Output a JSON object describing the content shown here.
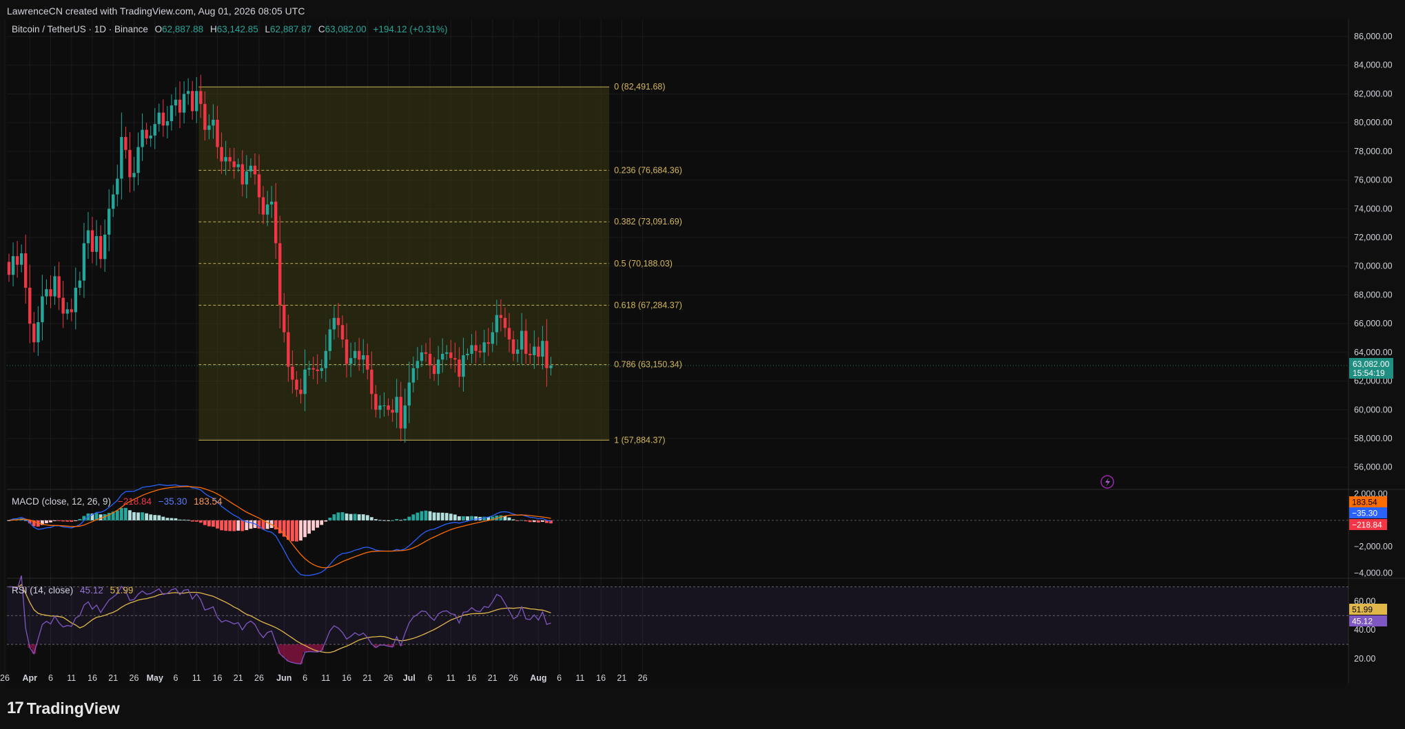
{
  "header": {
    "created_by": "LawrenceCN created with TradingView.com, Aug 01, 2026 08:05 UTC"
  },
  "symbol": {
    "name": "Bitcoin / TetherUS · 1D · Binance",
    "open_label": "O",
    "open": "62,887.88",
    "high_label": "H",
    "high": "63,142.85",
    "low_label": "L",
    "low": "62,887.87",
    "close_label": "C",
    "close": "63,082.00",
    "change": "+194.12 (+0.31%)"
  },
  "brand": {
    "name": "TradingView",
    "logo_text": "17"
  },
  "colors": {
    "up": "#26a69a",
    "down": "#f23645",
    "fib_zone": "#3b3b14",
    "fib_line": "#c9b458",
    "macd_line": "#2962ff",
    "signal_line": "#ff6d00",
    "rsi_line": "#7e57c2",
    "rsi_ma": "#e0b84a"
  },
  "chart_data": [
    {
      "type": "candlestick",
      "name": "Bitcoin / TetherUS · 1D · Binance",
      "y_axis_ticks": [
        56000,
        58000,
        60000,
        62000,
        64000,
        66000,
        68000,
        70000,
        72000,
        74000,
        76000,
        78000,
        80000,
        82000,
        84000,
        86000
      ],
      "y_tick_labels": [
        "56,000.00",
        "58,000.00",
        "60,000.00",
        "62,000.00",
        "64,000.00",
        "66,000.00",
        "68,000.00",
        "70,000.00",
        "72,000.00",
        "74,000.00",
        "76,000.00",
        "78,000.00",
        "80,000.00",
        "82,000.00",
        "84,000.00",
        "86,000.00"
      ],
      "ylim": [
        54500,
        87200
      ],
      "x_tick_labels": [
        {
          "day": -1,
          "label": "26"
        },
        {
          "day": 5,
          "label": "Apr"
        },
        {
          "day": 10,
          "label": "6"
        },
        {
          "day": 15,
          "label": "11"
        },
        {
          "day": 20,
          "label": "16"
        },
        {
          "day": 25,
          "label": "21"
        },
        {
          "day": 30,
          "label": "26"
        },
        {
          "day": 35,
          "label": "May"
        },
        {
          "day": 40,
          "label": "6"
        },
        {
          "day": 45,
          "label": "11"
        },
        {
          "day": 50,
          "label": "16"
        },
        {
          "day": 55,
          "label": "21"
        },
        {
          "day": 60,
          "label": "26"
        },
        {
          "day": 66,
          "label": "Jun"
        },
        {
          "day": 71,
          "label": "6"
        },
        {
          "day": 76,
          "label": "11"
        },
        {
          "day": 81,
          "label": "16"
        },
        {
          "day": 86,
          "label": "21"
        },
        {
          "day": 91,
          "label": "26"
        },
        {
          "day": 96,
          "label": "Jul"
        },
        {
          "day": 101,
          "label": "6"
        },
        {
          "day": 106,
          "label": "11"
        },
        {
          "day": 111,
          "label": "16"
        },
        {
          "day": 116,
          "label": "21"
        },
        {
          "day": 121,
          "label": "26"
        },
        {
          "day": 127,
          "label": "Aug"
        },
        {
          "day": 132,
          "label": "6"
        },
        {
          "day": 137,
          "label": "11"
        },
        {
          "day": 142,
          "label": "16"
        },
        {
          "day": 147,
          "label": "21"
        },
        {
          "day": 152,
          "label": "26"
        }
      ],
      "candles_close": [
        69400,
        70700,
        70100,
        70900,
        68500,
        66000,
        64700,
        66100,
        67900,
        68400,
        67900,
        69300,
        67800,
        66700,
        67000,
        66800,
        68500,
        69000,
        71600,
        72500,
        71000,
        72100,
        70500,
        72200,
        74000,
        75000,
        76100,
        79000,
        78100,
        76200,
        76500,
        78300,
        79500,
        78900,
        79100,
        79900,
        80700,
        79800,
        80100,
        81200,
        81600,
        80700,
        82000,
        82200,
        80800,
        82200,
        81300,
        79500,
        79800,
        80200,
        78300,
        77300,
        77600,
        77300,
        76900,
        77100,
        75700,
        76600,
        77000,
        76400,
        74800,
        73600,
        74300,
        74500,
        71600,
        67300,
        65400,
        63000,
        62100,
        61400,
        61100,
        62800,
        62900,
        62800,
        62700,
        62900,
        64100,
        65600,
        66400,
        65900,
        64900,
        63200,
        63600,
        64100,
        63500,
        63800,
        62800,
        61100,
        60000,
        60300,
        60300,
        60000,
        59800,
        60900,
        58700,
        60300,
        61900,
        62900,
        63400,
        64000,
        63900,
        63100,
        62500,
        63500,
        63900,
        64000,
        63600,
        63500,
        62300,
        63800,
        63900,
        64500,
        64100,
        64000,
        64700,
        64600,
        65400,
        66600,
        66400,
        65700,
        64900,
        63900,
        64200,
        65500,
        63900,
        63800,
        64400,
        63700,
        64800,
        62900,
        63082
      ],
      "candles_open_first": 70300,
      "fib_retracement": {
        "start_day": 46,
        "end_day": 144,
        "levels": [
          {
            "ratio": "0",
            "price": 82491.68,
            "label": "0 (82,491.68)"
          },
          {
            "ratio": "0.236",
            "price": 76684.36,
            "label": "0.236 (76,684.36)"
          },
          {
            "ratio": "0.382",
            "price": 73091.69,
            "label": "0.382 (73,091.69)"
          },
          {
            "ratio": "0.5",
            "price": 70188.03,
            "label": "0.5 (70,188.03)"
          },
          {
            "ratio": "0.618",
            "price": 67284.37,
            "label": "0.618 (67,284.37)"
          },
          {
            "ratio": "0.786",
            "price": 63150.34,
            "label": "0.786 (63,150.34)"
          },
          {
            "ratio": "1",
            "price": 57884.37,
            "label": "1 (57,884.37)"
          }
        ]
      },
      "last_price": {
        "value": "63,082.00",
        "countdown": "15:54:19"
      }
    },
    {
      "type": "macd",
      "title": "MACD (close, 12, 26, 9)",
      "values_text": {
        "histogram": "−218.84",
        "macd": "−35.30",
        "signal": "183.54"
      },
      "y_tick_labels": [
        "2,000.00",
        "−2,000.00",
        "−4,000.00"
      ],
      "y_ticks": [
        2000,
        -2000,
        -4000
      ],
      "ylim": [
        -4300,
        2300
      ],
      "badges": [
        "183.54",
        "−35.30",
        "−218.84"
      ]
    },
    {
      "type": "rsi",
      "title": "RSI (14, close)",
      "values_text": {
        "rsi": "45.12",
        "rsi_ma": "51.99"
      },
      "y_ticks": [
        60,
        40,
        20
      ],
      "y_tick_labels": [
        "60.00",
        "40.00",
        "20.00"
      ],
      "bands": [
        70,
        50,
        30
      ],
      "ylim": [
        10,
        75
      ],
      "badges": [
        "51.99",
        "45.12"
      ]
    }
  ]
}
